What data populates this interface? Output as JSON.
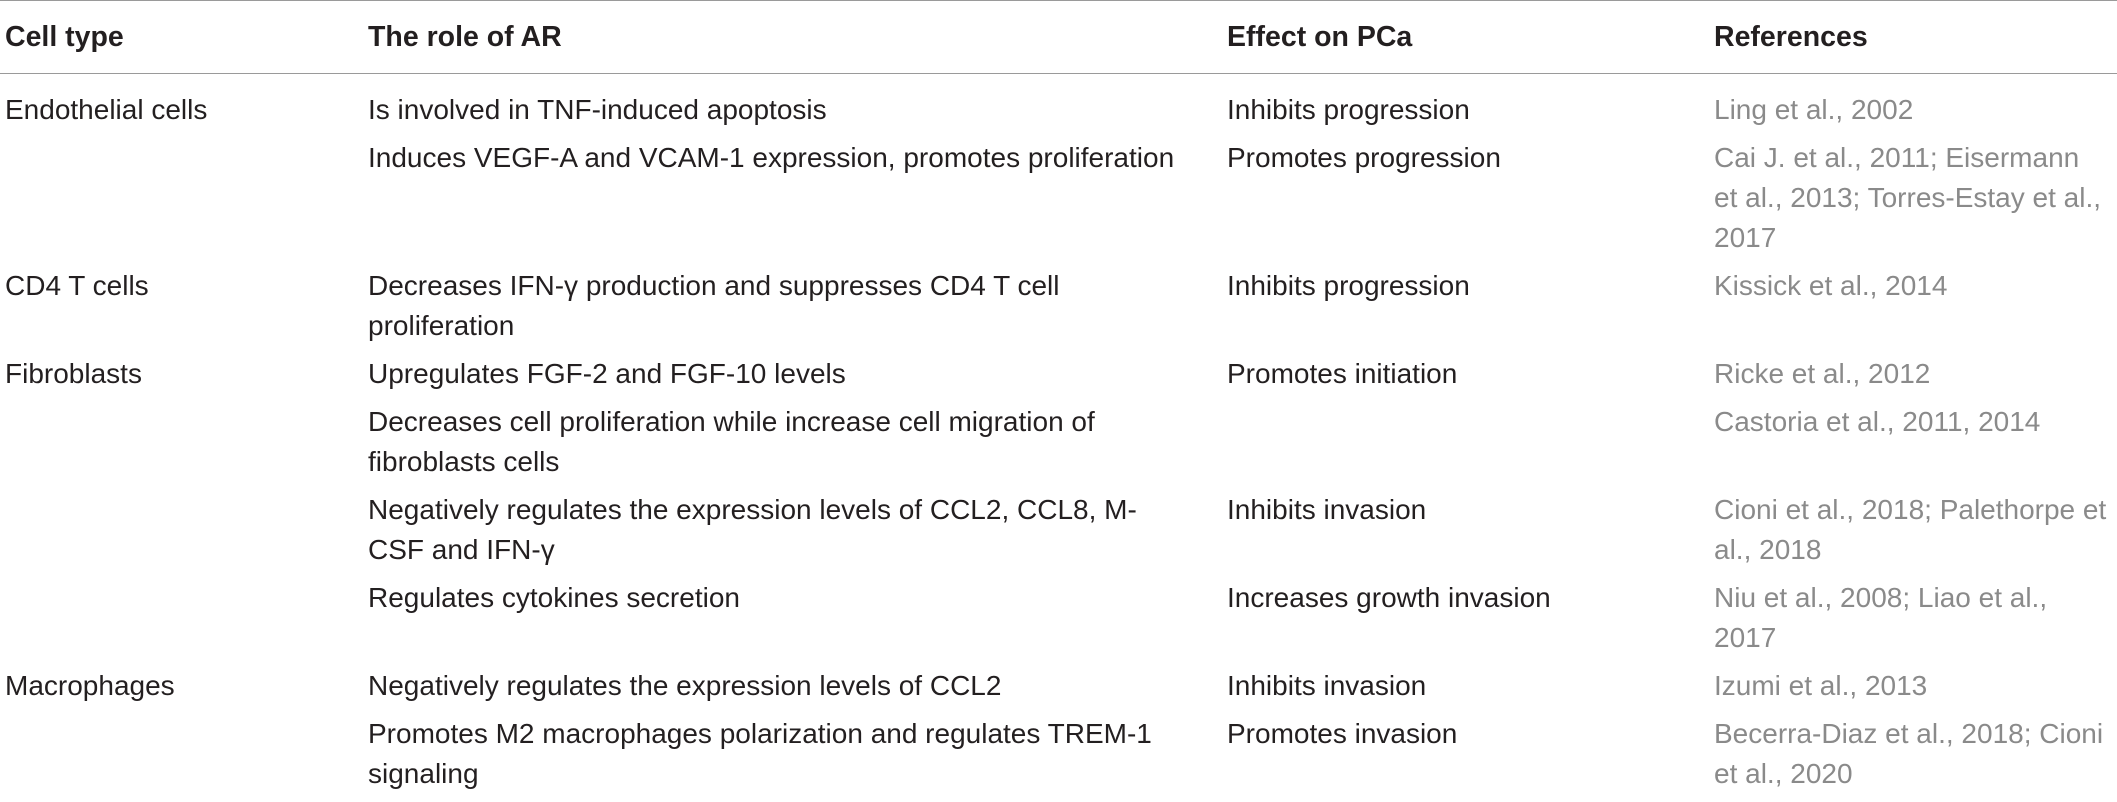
{
  "table": {
    "headers": [
      "Cell type",
      "The role of AR",
      "Effect on PCa",
      "References"
    ],
    "rows": [
      {
        "cell_type": "Endothelial cells",
        "role": "Is involved in TNF-induced apoptosis",
        "effect": "Inhibits progression",
        "references": "Ling et al., 2002"
      },
      {
        "cell_type": "",
        "role": "Induces VEGF-A and VCAM-1 expression, promotes proliferation",
        "effect": "Promotes progression",
        "references": "Cai J. et al., 2011; Eisermann et al., 2013; Torres-Estay et al., 2017"
      },
      {
        "cell_type": "CD4 T cells",
        "role": "Decreases IFN-γ production and suppresses CD4 T cell proliferation",
        "effect": "Inhibits progression",
        "references": "Kissick et al., 2014"
      },
      {
        "cell_type": "Fibroblasts",
        "role": "Upregulates FGF-2 and FGF-10 levels",
        "effect": "Promotes initiation",
        "references": "Ricke et al., 2012"
      },
      {
        "cell_type": "",
        "role": "Decreases cell proliferation while increase cell migration of fibroblasts cells",
        "effect": "",
        "references": "Castoria et al., 2011, 2014"
      },
      {
        "cell_type": "",
        "role": "Negatively regulates the expression levels of CCL2, CCL8, M-CSF and IFN-γ",
        "effect": "Inhibits invasion",
        "references": "Cioni et al., 2018; Palethorpe et al., 2018"
      },
      {
        "cell_type": "",
        "role": "Regulates cytokines secretion",
        "effect": "Increases growth invasion",
        "references": "Niu et al., 2008; Liao et al., 2017"
      },
      {
        "cell_type": "Macrophages",
        "role": "Negatively regulates the expression levels of CCL2",
        "effect": "Inhibits invasion",
        "references": "Izumi et al., 2013"
      },
      {
        "cell_type": "",
        "role": "Promotes M2 macrophages polarization and regulates TREM-1 signaling",
        "effect": "Promotes invasion",
        "references": "Becerra-Diaz et al., 2018; Cioni et al., 2020"
      }
    ]
  }
}
